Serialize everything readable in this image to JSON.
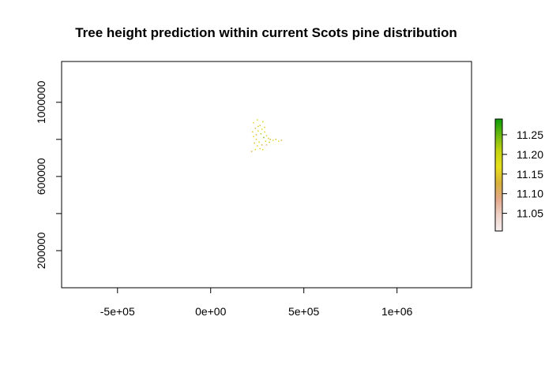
{
  "chart_data": {
    "type": "heatmap",
    "title": "Tree height prediction within current Scots pine distribution",
    "xlabel": "",
    "ylabel": "",
    "xlim": [
      -800000,
      1400000
    ],
    "ylim": [
      0,
      1220000
    ],
    "x_ticks": [
      {
        "value": -500000,
        "label": "-5e+05"
      },
      {
        "value": 0,
        "label": "0e+00"
      },
      {
        "value": 500000,
        "label": "5e+05"
      },
      {
        "value": 1000000,
        "label": "1e+06"
      }
    ],
    "y_ticks": [
      {
        "value": 200000,
        "label": "200000"
      },
      {
        "value": 400000,
        "label": ""
      },
      {
        "value": 600000,
        "label": "600000"
      },
      {
        "value": 800000,
        "label": ""
      },
      {
        "value": 1000000,
        "label": "1000000"
      }
    ],
    "grid": false,
    "legend": {
      "placement": "right",
      "type": "colorbar",
      "range": [
        11.005,
        11.29
      ],
      "ticks": [
        {
          "value": 11.05,
          "label": "11.05"
        },
        {
          "value": 11.1,
          "label": "11.10"
        },
        {
          "value": 11.15,
          "label": "11.15"
        },
        {
          "value": 11.2,
          "label": "11.20"
        },
        {
          "value": 11.25,
          "label": "11.25"
        }
      ],
      "colors": [
        "#f7eef0",
        "#eed2c8",
        "#e4a98a",
        "#d8b13a",
        "#e7df1c",
        "#c5d410",
        "#6cb810",
        "#0a9c08"
      ]
    },
    "points": [
      {
        "x": 230000,
        "y": 890000,
        "v": 11.16
      },
      {
        "x": 250000,
        "y": 905000,
        "v": 11.18
      },
      {
        "x": 265000,
        "y": 875000,
        "v": 11.14
      },
      {
        "x": 280000,
        "y": 895000,
        "v": 11.2
      },
      {
        "x": 240000,
        "y": 860000,
        "v": 11.12
      },
      {
        "x": 225000,
        "y": 840000,
        "v": 11.15
      },
      {
        "x": 255000,
        "y": 845000,
        "v": 11.17
      },
      {
        "x": 270000,
        "y": 830000,
        "v": 11.22
      },
      {
        "x": 290000,
        "y": 840000,
        "v": 11.19
      },
      {
        "x": 300000,
        "y": 820000,
        "v": 11.16
      },
      {
        "x": 285000,
        "y": 810000,
        "v": 11.24
      },
      {
        "x": 310000,
        "y": 805000,
        "v": 11.15
      },
      {
        "x": 295000,
        "y": 790000,
        "v": 11.18
      },
      {
        "x": 320000,
        "y": 800000,
        "v": 11.13
      },
      {
        "x": 335000,
        "y": 795000,
        "v": 11.16
      },
      {
        "x": 350000,
        "y": 800000,
        "v": 11.14
      },
      {
        "x": 365000,
        "y": 790000,
        "v": 11.17
      },
      {
        "x": 380000,
        "y": 795000,
        "v": 11.12
      },
      {
        "x": 245000,
        "y": 800000,
        "v": 11.15
      },
      {
        "x": 260000,
        "y": 785000,
        "v": 11.19
      },
      {
        "x": 235000,
        "y": 780000,
        "v": 11.14
      },
      {
        "x": 250000,
        "y": 765000,
        "v": 11.16
      },
      {
        "x": 275000,
        "y": 770000,
        "v": 11.13
      },
      {
        "x": 240000,
        "y": 745000,
        "v": 11.18
      },
      {
        "x": 220000,
        "y": 735000,
        "v": 11.12
      },
      {
        "x": 265000,
        "y": 750000,
        "v": 11.15
      },
      {
        "x": 280000,
        "y": 745000,
        "v": 11.17
      },
      {
        "x": 300000,
        "y": 770000,
        "v": 11.11
      },
      {
        "x": 315000,
        "y": 785000,
        "v": 11.21
      },
      {
        "x": 230000,
        "y": 815000,
        "v": 11.16
      },
      {
        "x": 245000,
        "y": 825000,
        "v": 11.13
      },
      {
        "x": 275000,
        "y": 855000,
        "v": 11.18
      },
      {
        "x": 290000,
        "y": 865000,
        "v": 11.15
      },
      {
        "x": 255000,
        "y": 870000,
        "v": 11.19
      }
    ]
  }
}
